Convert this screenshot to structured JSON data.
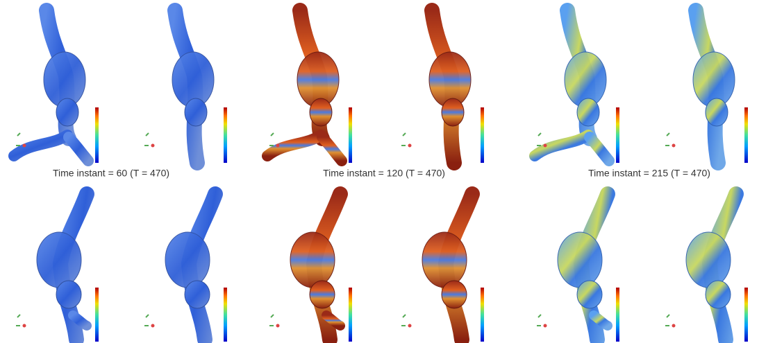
{
  "captions": [
    "Time instant = 60 (T = 470)",
    "Time instant = 120 (T = 470)",
    "Time instant = 215 (T = 470)"
  ]
}
